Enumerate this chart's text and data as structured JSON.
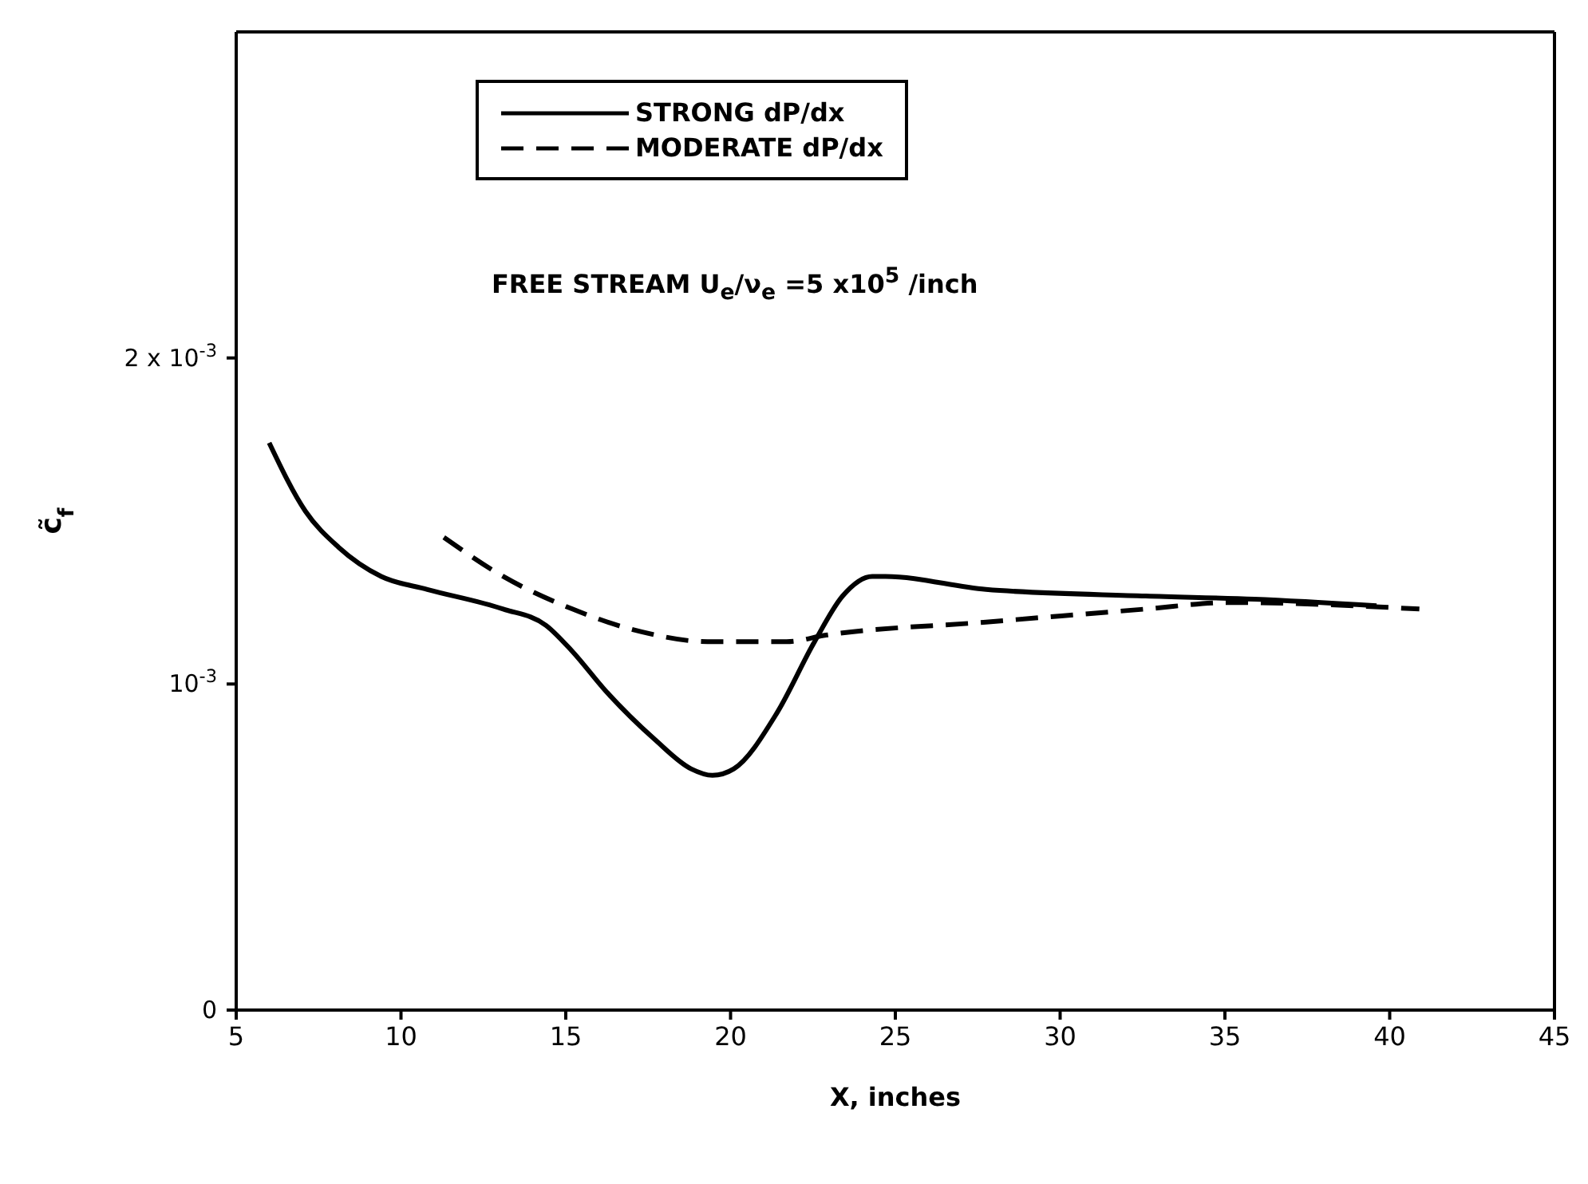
{
  "chart_data": {
    "type": "line",
    "xlabel": "X, inches",
    "ylabel": "c̃$_{f}$",
    "annotations": [
      "FREE STREAM U$_{e}$/ν$_{e}$ =5 x10$^{5}$ /inch"
    ],
    "series": [
      {
        "name": "STRONG dP/dx",
        "color": "#000000",
        "line_style": "solid",
        "x": [
          6.0,
          7.1,
          8.1,
          9.4,
          10.8,
          13.1,
          14.4,
          15.2,
          16.2,
          17.7,
          18.8,
          19.45,
          20.1,
          21.4,
          22.55,
          23.4,
          24.3,
          24.7,
          27.75,
          32.6,
          35.9,
          39.6
        ],
        "values": [
          0.00174,
          0.00153,
          0.00142,
          0.00133,
          0.00129,
          0.00123,
          0.00118,
          0.0011,
          0.00098,
          0.00083,
          0.00074,
          0.00072,
          0.00074,
          0.00091,
          0.00113,
          0.00127,
          0.00133,
          0.00133,
          0.00129,
          0.00127,
          0.00126,
          0.00124
        ]
      },
      {
        "name": "MODERATE dP/dx",
        "color": "#000000",
        "line_style": "dashed",
        "x": [
          11.3,
          13.1,
          15.2,
          17.3,
          19.3,
          21.7,
          22.9,
          27.75,
          32.6,
          35.1,
          40.9
        ],
        "values": [
          0.00145,
          0.00133,
          0.00123,
          0.00116,
          0.00113,
          0.00113,
          0.00115,
          0.00119,
          0.00123,
          0.00125,
          0.00123
        ]
      }
    ],
    "xlim": [
      5,
      45
    ],
    "xticks": [
      5,
      10,
      15,
      20,
      25,
      30,
      35,
      40,
      45
    ],
    "ylim": [
      0,
      0.003
    ],
    "yticks": [
      0,
      {
        "value": 0.001,
        "label": "10$^{-3}$"
      },
      {
        "value": 0.002,
        "label": "2 x 10$^{-3}$"
      }
    ],
    "legend": "top",
    "marker": "none"
  }
}
